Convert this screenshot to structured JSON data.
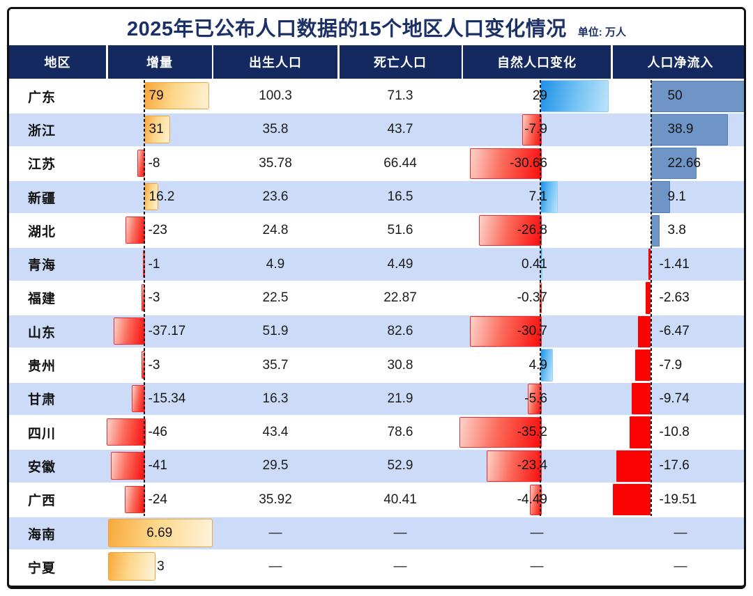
{
  "title": "2025年已公布人口数据的15个地区人口变化情况",
  "unit_label": "单位: 万人",
  "placeholder_dash": "—",
  "header": {
    "columns": [
      "地区",
      "增量",
      "出生人口",
      "死亡人口",
      "自然人口变化",
      "人口净流入"
    ]
  },
  "colors": {
    "header_bg": "#13295F",
    "title_text": "#1A3066",
    "row_alt_bg": "#CCDCF8",
    "row_bg": "#FFFFFF",
    "frame_border": "#101010",
    "orange_bar_from": "#F9A63B",
    "orange_bar_to": "#FEF2D5",
    "orange_bar_border": "#F2A43C",
    "red_gradient_from": "#FCD3CB",
    "red_gradient_to": "#FA0D0D",
    "red_bar_border": "#EE2C2C",
    "blue_gradient_from": "#1E90E8",
    "blue_gradient_to": "#BCE4FB",
    "blue_bar_border": "#8FD0F6",
    "steel_blue_bar": "#6E95C5",
    "solid_red_bar": "#F90303"
  },
  "chart_data": {
    "type": "table",
    "title": "2025年已公布人口数据的15个地区人口变化情况",
    "unit": "万人",
    "columns": [
      "地区",
      "增量",
      "出生人口",
      "死亡人口",
      "自然人口变化",
      "人口净流入"
    ],
    "bar_columns": [
      "增量",
      "自然人口变化",
      "人口净流入"
    ],
    "rows": [
      {
        "region": "广东",
        "increment": 79,
        "births": 100.3,
        "deaths": 71.3,
        "natural_change": 29,
        "net_inflow": 50
      },
      {
        "region": "浙江",
        "increment": 31,
        "births": 35.8,
        "deaths": 43.7,
        "natural_change": -7.9,
        "net_inflow": 38.9
      },
      {
        "region": "江苏",
        "increment": -8,
        "births": 35.78,
        "deaths": 66.44,
        "natural_change": -30.66,
        "net_inflow": 22.66
      },
      {
        "region": "新疆",
        "increment": 16.2,
        "births": 23.6,
        "deaths": 16.5,
        "natural_change": 7.1,
        "net_inflow": 9.1
      },
      {
        "region": "湖北",
        "increment": -23,
        "births": 24.8,
        "deaths": 51.6,
        "natural_change": -26.8,
        "net_inflow": 3.8
      },
      {
        "region": "青海",
        "increment": -1,
        "births": 4.9,
        "deaths": 4.49,
        "natural_change": 0.41,
        "net_inflow": -1.41
      },
      {
        "region": "福建",
        "increment": -3,
        "births": 22.5,
        "deaths": 22.87,
        "natural_change": -0.37,
        "net_inflow": -2.63
      },
      {
        "region": "山东",
        "increment": -37.17,
        "births": 51.9,
        "deaths": 82.6,
        "natural_change": -30.7,
        "net_inflow": -6.47
      },
      {
        "region": "贵州",
        "increment": -3,
        "births": 35.7,
        "deaths": 30.8,
        "natural_change": 4.9,
        "net_inflow": -7.9
      },
      {
        "region": "甘肃",
        "increment": -15.34,
        "births": 16.3,
        "deaths": 21.9,
        "natural_change": -5.6,
        "net_inflow": -9.74
      },
      {
        "region": "四川",
        "increment": -46,
        "births": 43.4,
        "deaths": 78.6,
        "natural_change": -35.2,
        "net_inflow": -10.8
      },
      {
        "region": "安徽",
        "increment": -41,
        "births": 29.5,
        "deaths": 52.9,
        "natural_change": -23.4,
        "net_inflow": -17.6
      },
      {
        "region": "广西",
        "increment": -24,
        "births": 35.92,
        "deaths": 40.41,
        "natural_change": -4.49,
        "net_inflow": -19.51
      },
      {
        "region": "海南",
        "increment": 6.69,
        "births": null,
        "deaths": null,
        "natural_change": null,
        "net_inflow": null,
        "increment_own_scale": true
      },
      {
        "region": "宁夏",
        "increment": 3,
        "births": null,
        "deaths": null,
        "natural_change": null,
        "net_inflow": null,
        "increment_own_scale": true
      }
    ]
  }
}
